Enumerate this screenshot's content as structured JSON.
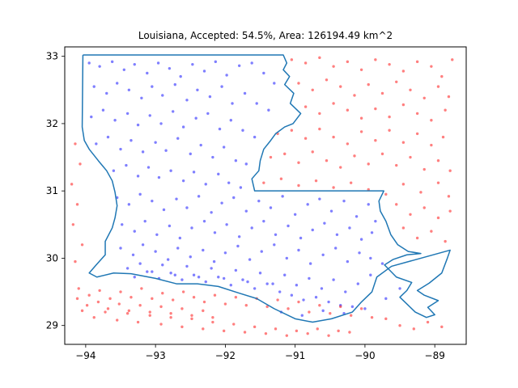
{
  "chart_data": {
    "type": "scatter",
    "title": "Louisiana, Accepted: 54.5%, Area: 126194.49 km^2",
    "xlabel": "",
    "ylabel": "",
    "xlim": [
      -94.3,
      -88.55
    ],
    "ylim": [
      28.72,
      33.14
    ],
    "x_ticks": [
      -94,
      -93,
      -92,
      -91,
      -90,
      -89
    ],
    "x_tick_labels": [
      "−94",
      "−93",
      "−92",
      "−91",
      "−90",
      "−89"
    ],
    "y_ticks": [
      29,
      30,
      31,
      32,
      33
    ],
    "y_tick_labels": [
      "29",
      "30",
      "31",
      "32",
      "33"
    ],
    "grid": false,
    "colors": {
      "accepted": "#0000ff",
      "rejected": "#ff0000",
      "boundary": "#1f77b4"
    },
    "boundary": [
      [
        -94.04,
        33.02
      ],
      [
        -91.17,
        33.02
      ],
      [
        -91.12,
        32.9
      ],
      [
        -91.17,
        32.8
      ],
      [
        -91.08,
        32.7
      ],
      [
        -91.15,
        32.58
      ],
      [
        -91.02,
        32.45
      ],
      [
        -91.07,
        32.3
      ],
      [
        -90.92,
        32.15
      ],
      [
        -91.03,
        32.0
      ],
      [
        -91.15,
        31.95
      ],
      [
        -91.28,
        31.85
      ],
      [
        -91.35,
        31.75
      ],
      [
        -91.45,
        31.62
      ],
      [
        -91.5,
        31.45
      ],
      [
        -91.52,
        31.3
      ],
      [
        -91.62,
        31.18
      ],
      [
        -91.58,
        31.0
      ],
      [
        -89.73,
        31.0
      ],
      [
        -89.8,
        30.85
      ],
      [
        -89.78,
        30.7
      ],
      [
        -89.7,
        30.55
      ],
      [
        -89.63,
        30.35
      ],
      [
        -89.53,
        30.2
      ],
      [
        -89.38,
        30.1
      ],
      [
        -89.2,
        30.07
      ],
      [
        -89.4,
        30.05
      ],
      [
        -89.6,
        29.98
      ],
      [
        -89.72,
        29.9
      ],
      [
        -89.55,
        29.72
      ],
      [
        -89.33,
        29.64
      ],
      [
        -89.4,
        29.52
      ],
      [
        -89.5,
        29.42
      ],
      [
        -89.38,
        29.3
      ],
      [
        -89.28,
        29.2
      ],
      [
        -89.12,
        29.12
      ],
      [
        -89.0,
        29.16
      ],
      [
        -89.1,
        29.27
      ],
      [
        -88.95,
        29.37
      ],
      [
        -89.15,
        29.45
      ],
      [
        -89.25,
        29.52
      ],
      [
        -89.08,
        29.63
      ],
      [
        -88.9,
        29.78
      ],
      [
        -88.82,
        30.0
      ],
      [
        -88.78,
        30.12
      ],
      [
        -89.62,
        29.88
      ],
      [
        -89.83,
        29.72
      ],
      [
        -89.9,
        29.5
      ],
      [
        -90.05,
        29.35
      ],
      [
        -90.18,
        29.2
      ],
      [
        -90.48,
        29.1
      ],
      [
        -90.75,
        29.05
      ],
      [
        -91.0,
        29.1
      ],
      [
        -91.3,
        29.25
      ],
      [
        -91.55,
        29.4
      ],
      [
        -91.8,
        29.48
      ],
      [
        -92.1,
        29.58
      ],
      [
        -92.4,
        29.62
      ],
      [
        -92.7,
        29.62
      ],
      [
        -93.0,
        29.7
      ],
      [
        -93.35,
        29.77
      ],
      [
        -93.6,
        29.78
      ],
      [
        -93.84,
        29.72
      ],
      [
        -93.95,
        29.78
      ],
      [
        -93.85,
        29.9
      ],
      [
        -93.72,
        30.05
      ],
      [
        -93.72,
        30.25
      ],
      [
        -93.62,
        30.45
      ],
      [
        -93.58,
        30.6
      ],
      [
        -93.55,
        30.78
      ],
      [
        -93.58,
        30.98
      ],
      [
        -93.62,
        31.15
      ],
      [
        -93.7,
        31.3
      ],
      [
        -93.82,
        31.45
      ],
      [
        -93.95,
        31.62
      ],
      [
        -94.02,
        31.75
      ],
      [
        -94.05,
        31.95
      ],
      [
        -94.04,
        33.02
      ]
    ],
    "series": [
      {
        "color": "#0000ff",
        "x": [
          -93.95,
          -93.8,
          -93.62,
          -93.45,
          -93.3,
          -93.12,
          -92.96,
          -92.8,
          -92.64,
          -92.47,
          -92.3,
          -92.14,
          -91.98,
          -91.8,
          -91.62,
          -91.45,
          -91.3,
          -93.88,
          -93.7,
          -93.55,
          -93.38,
          -93.2,
          -93.05,
          -92.9,
          -92.72,
          -92.55,
          -92.4,
          -92.22,
          -92.05,
          -91.9,
          -91.72,
          -91.55,
          -91.38,
          -93.92,
          -93.75,
          -93.58,
          -93.4,
          -93.25,
          -93.08,
          -92.92,
          -92.75,
          -92.6,
          -92.42,
          -92.25,
          -92.08,
          -91.92,
          -91.75,
          -91.58,
          -93.85,
          -93.68,
          -93.5,
          -93.35,
          -93.18,
          -93.0,
          -92.85,
          -92.68,
          -92.5,
          -92.35,
          -92.18,
          -92.02,
          -91.85,
          -91.7,
          -93.6,
          -93.42,
          -93.25,
          -93.1,
          -92.95,
          -92.78,
          -92.6,
          -92.45,
          -92.28,
          -92.1,
          -91.95,
          -91.78,
          -93.55,
          -93.38,
          -93.22,
          -93.05,
          -92.88,
          -92.7,
          -92.55,
          -92.38,
          -92.2,
          -92.05,
          -91.88,
          -91.7,
          -91.52,
          -91.35,
          -91.18,
          -91.0,
          -90.82,
          -90.65,
          -90.48,
          -90.3,
          -90.12,
          -89.95,
          -89.85,
          -93.48,
          -93.3,
          -93.15,
          -92.98,
          -92.8,
          -92.65,
          -92.48,
          -92.3,
          -92.15,
          -91.98,
          -91.8,
          -91.62,
          -91.45,
          -91.28,
          -91.1,
          -90.92,
          -90.75,
          -90.58,
          -90.4,
          -90.22,
          -90.05,
          -89.9,
          -93.5,
          -93.32,
          -93.18,
          -93.0,
          -92.82,
          -92.68,
          -92.5,
          -92.32,
          -92.16,
          -92.0,
          -91.82,
          -91.65,
          -91.48,
          -91.3,
          -91.12,
          -90.95,
          -90.78,
          -90.6,
          -90.42,
          -90.25,
          -90.08,
          -89.92,
          -89.75,
          -93.4,
          -93.22,
          -93.05,
          -92.9,
          -92.72,
          -92.55,
          -92.38,
          -92.2,
          -92.02,
          -91.85,
          -91.68,
          -91.5,
          -91.32,
          -91.15,
          -90.98,
          -90.8,
          -90.62,
          -90.45,
          -90.28,
          -90.1,
          -89.92,
          -93.3,
          -93.12,
          -92.95,
          -92.78,
          -92.62,
          -92.45,
          -92.28,
          -92.1,
          -91.92,
          -91.75,
          -91.58,
          -91.4,
          -91.22,
          -91.05,
          -90.88,
          -90.7,
          -90.52,
          -90.35,
          -90.18,
          -91.2,
          -90.9,
          -90.6,
          -90.3,
          -90.0,
          -89.7,
          -89.5
        ],
        "y": [
          32.9,
          32.85,
          32.92,
          32.8,
          32.88,
          32.75,
          32.9,
          32.82,
          32.7,
          32.88,
          32.78,
          32.92,
          32.72,
          32.86,
          32.9,
          32.75,
          32.6,
          32.55,
          32.45,
          32.6,
          32.5,
          32.38,
          32.55,
          32.42,
          32.58,
          32.35,
          32.5,
          32.4,
          32.55,
          32.3,
          32.45,
          32.3,
          32.2,
          32.1,
          32.2,
          32.05,
          32.15,
          31.98,
          32.12,
          32.0,
          32.18,
          31.95,
          32.08,
          32.15,
          31.92,
          32.05,
          31.9,
          31.8,
          31.7,
          31.8,
          31.62,
          31.75,
          31.58,
          31.72,
          31.6,
          31.78,
          31.55,
          31.68,
          31.5,
          31.65,
          31.45,
          31.4,
          31.3,
          31.38,
          31.22,
          31.35,
          31.2,
          31.3,
          31.15,
          31.28,
          31.1,
          31.25,
          31.12,
          31.05,
          30.9,
          30.8,
          30.95,
          30.85,
          30.72,
          30.88,
          30.75,
          30.92,
          30.68,
          30.82,
          30.9,
          30.7,
          30.85,
          30.75,
          30.92,
          30.65,
          30.8,
          30.88,
          30.7,
          30.85,
          30.62,
          30.8,
          30.55,
          30.5,
          30.4,
          30.55,
          30.35,
          30.48,
          30.3,
          30.45,
          30.55,
          30.38,
          30.5,
          30.32,
          30.45,
          30.55,
          30.35,
          30.48,
          30.3,
          30.42,
          30.52,
          30.35,
          30.45,
          30.28,
          30.38,
          30.15,
          30.05,
          30.2,
          30.1,
          29.98,
          30.15,
          30.02,
          30.12,
          29.95,
          30.08,
          30.18,
          29.98,
          30.1,
          30.2,
          30.0,
          30.12,
          29.92,
          30.05,
          30.15,
          29.95,
          30.08,
          30.0,
          29.92,
          29.85,
          29.92,
          29.8,
          29.9,
          29.75,
          29.88,
          29.72,
          29.85,
          29.7,
          29.82,
          29.65,
          29.78,
          29.62,
          29.75,
          29.6,
          29.7,
          29.55,
          29.68,
          29.5,
          29.62,
          29.75,
          29.72,
          29.8,
          29.7,
          29.78,
          29.68,
          29.75,
          29.65,
          29.72,
          29.6,
          29.68,
          29.55,
          29.62,
          29.5,
          29.45,
          29.38,
          29.42,
          29.35,
          29.3,
          29.28,
          29.2,
          29.15,
          29.22,
          29.18,
          29.25,
          29.4,
          29.55
        ]
      },
      {
        "color": "#ff0000",
        "x": [
          -91.05,
          -90.85,
          -90.65,
          -90.45,
          -90.25,
          -90.05,
          -89.85,
          -89.65,
          -89.45,
          -89.25,
          -89.05,
          -88.9,
          -88.75,
          -90.95,
          -90.75,
          -90.55,
          -90.35,
          -90.15,
          -89.95,
          -89.75,
          -89.55,
          -89.35,
          -89.15,
          -88.95,
          -88.8,
          -90.85,
          -90.65,
          -90.45,
          -90.25,
          -90.05,
          -89.85,
          -89.65,
          -89.45,
          -89.25,
          -89.05,
          -88.85,
          -91.25,
          -91.05,
          -90.85,
          -90.65,
          -90.45,
          -90.25,
          -90.05,
          -89.85,
          -89.65,
          -89.45,
          -89.25,
          -89.05,
          -88.88,
          -91.35,
          -91.15,
          -90.95,
          -90.75,
          -90.55,
          -90.35,
          -90.15,
          -89.95,
          -89.75,
          -89.55,
          -89.35,
          -89.15,
          -88.95,
          -88.78,
          -91.45,
          -91.2,
          -90.95,
          -90.7,
          -90.45,
          -90.2,
          -89.95,
          -89.7,
          -89.45,
          -89.2,
          -88.95,
          -88.8,
          -89.55,
          -89.35,
          -89.15,
          -88.95,
          -88.78,
          -89.45,
          -89.25,
          -89.05,
          -88.85,
          -94.15,
          -94.08,
          -94.2,
          -94.12,
          -94.18,
          -94.05,
          -94.15,
          -94.1,
          -93.95,
          -93.8,
          -93.65,
          -93.5,
          -93.35,
          -93.2,
          -93.05,
          -92.9,
          -92.75,
          -92.6,
          -92.45,
          -92.3,
          -92.15,
          -92.0,
          -91.85,
          -91.7,
          -91.55,
          -91.4,
          -91.25,
          -91.1,
          -90.95,
          -90.8,
          -90.65,
          -90.5,
          -90.35,
          -90.2,
          -90.05,
          -89.9,
          -94.05,
          -93.88,
          -93.72,
          -93.55,
          -93.4,
          -93.25,
          -93.08,
          -92.92,
          -92.78,
          -92.62,
          -92.48,
          -92.32,
          -92.18,
          -92.02,
          -91.88,
          -91.72,
          -91.58,
          -91.42,
          -91.28,
          -91.12,
          -90.98,
          -90.82,
          -90.68,
          -90.52,
          -90.38,
          -90.22,
          -94.12,
          -93.98,
          -93.82,
          -93.68,
          -93.52,
          -93.38,
          -93.22,
          -93.08,
          -92.92,
          -92.78,
          -92.62,
          -92.48,
          -92.32,
          -92.18,
          -89.7,
          -89.5,
          -89.3,
          -89.1,
          -88.9
        ],
        "y": [
          32.95,
          32.9,
          32.98,
          32.85,
          32.92,
          32.8,
          32.95,
          32.88,
          32.78,
          32.92,
          32.85,
          32.7,
          32.95,
          32.6,
          32.5,
          32.65,
          32.55,
          32.42,
          32.58,
          32.45,
          32.62,
          32.5,
          32.38,
          32.55,
          32.4,
          32.25,
          32.15,
          32.3,
          32.2,
          32.08,
          32.22,
          32.1,
          32.28,
          32.15,
          32.05,
          32.2,
          31.85,
          31.9,
          31.78,
          31.92,
          31.8,
          31.7,
          31.88,
          31.75,
          31.9,
          31.72,
          31.85,
          31.68,
          31.8,
          31.5,
          31.55,
          31.42,
          31.58,
          31.45,
          31.35,
          31.52,
          31.4,
          31.55,
          31.38,
          31.5,
          31.32,
          31.45,
          31.3,
          31.12,
          31.18,
          31.08,
          31.15,
          31.05,
          31.12,
          31.02,
          30.95,
          31.1,
          30.98,
          31.12,
          30.92,
          30.8,
          30.65,
          30.75,
          30.6,
          30.7,
          30.45,
          30.3,
          30.4,
          30.25,
          31.7,
          31.4,
          31.1,
          30.8,
          30.5,
          30.2,
          29.95,
          29.55,
          29.45,
          29.52,
          29.4,
          29.5,
          29.42,
          29.55,
          29.4,
          29.48,
          29.38,
          29.5,
          29.42,
          29.35,
          29.45,
          29.32,
          29.42,
          29.3,
          29.4,
          29.28,
          29.38,
          29.25,
          29.35,
          29.2,
          29.3,
          29.18,
          29.28,
          29.15,
          29.25,
          29.12,
          29.22,
          29.12,
          29.2,
          29.08,
          29.18,
          29.05,
          29.15,
          29.02,
          29.12,
          28.98,
          29.1,
          28.95,
          29.05,
          28.92,
          29.02,
          28.9,
          28.98,
          28.88,
          28.95,
          28.85,
          28.92,
          28.88,
          28.95,
          28.85,
          28.92,
          28.9,
          29.4,
          29.3,
          29.35,
          29.25,
          29.32,
          29.22,
          29.3,
          29.2,
          29.28,
          29.18,
          29.25,
          29.15,
          29.22,
          29.12,
          29.1,
          29.0,
          28.95,
          29.05,
          28.98
        ]
      }
    ]
  }
}
